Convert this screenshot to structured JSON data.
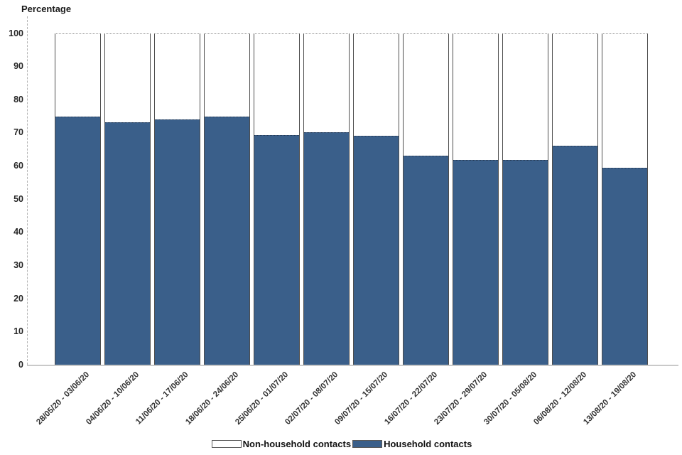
{
  "chart_data": {
    "type": "bar",
    "stacked": true,
    "title": "",
    "ylabel": "Percentage",
    "xlabel": "",
    "ylim": [
      0,
      100
    ],
    "yticks": [
      0,
      10,
      20,
      30,
      40,
      50,
      60,
      70,
      80,
      90,
      100
    ],
    "grid": false,
    "legend_position": "bottom",
    "categories": [
      "28/05/20 - 03/06/20",
      "04/06/20 - 10/06/20",
      "11/06/20 - 17/06/20",
      "18/06/20 - 24/06/20",
      "25/06/20 - 01/07/20",
      "02/07/20 - 08/07/20",
      "09/07/20 - 15/07/20",
      "16/07/20 - 22/07/20",
      "23/07/20 - 29/07/20",
      "30/07/20 - 05/08/20",
      "06/08/20 - 12/08/20",
      "13/08/20 - 19/08/20"
    ],
    "series": [
      {
        "name": "Household contacts",
        "color": "#3A5F8A",
        "values": [
          74.8,
          73.0,
          74.0,
          74.8,
          69.3,
          70.0,
          69.0,
          63.0,
          61.7,
          61.7,
          66.1,
          59.4
        ]
      },
      {
        "name": "Non-household contacts",
        "color": "#FFFFFF",
        "values": [
          25.2,
          27.0,
          26.0,
          25.2,
          30.7,
          30.0,
          31.0,
          37.0,
          38.3,
          38.3,
          33.9,
          40.6
        ]
      }
    ]
  },
  "legend": {
    "items": [
      {
        "label": "Non-household contacts",
        "color": "#FFFFFF"
      },
      {
        "label": "Household contacts",
        "color": "#3A5F8A"
      }
    ]
  },
  "colors": {
    "household_blue": "#3A5F8A",
    "bar_border": "#4D4D4D",
    "axis_line": "#C9C9C9",
    "text": "#1A1A1A"
  }
}
